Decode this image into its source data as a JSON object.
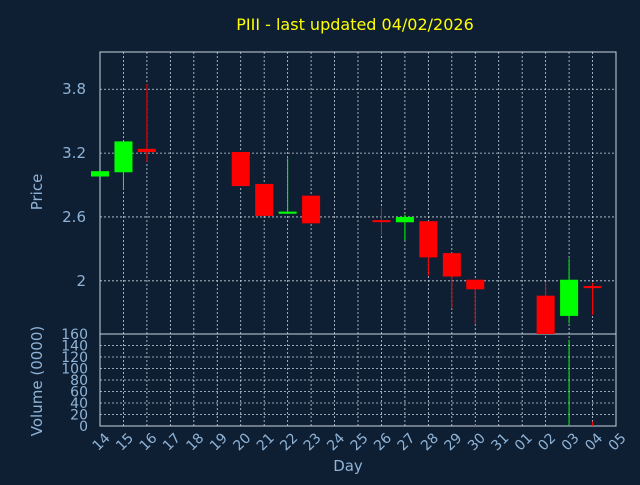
{
  "chart_data": {
    "type": "candlestick",
    "title": "PIII - last updated 04/02/2026",
    "colors": {
      "background": "#0f1f33",
      "title": "#ffff00",
      "axis_text": "#8fb4d8",
      "grid": "#c9d3de",
      "up": "#00ff00",
      "down": "#ff0000"
    },
    "price_panel": {
      "ylabel": "Price",
      "ylim": [
        1.5,
        4.15
      ],
      "yticks": [
        2,
        2.6,
        3.2,
        3.8
      ],
      "ytick_labels": [
        "2",
        "2.6",
        "3.2",
        "3.8"
      ]
    },
    "volume_panel": {
      "ylabel": "Volume (0000)",
      "ylim": [
        0,
        160
      ],
      "yticks": [
        0,
        20,
        40,
        60,
        80,
        100,
        120,
        140,
        160
      ],
      "ytick_labels": [
        "0",
        "20",
        "40",
        "60",
        "80",
        "100",
        "120",
        "140",
        "160"
      ]
    },
    "xlabel": "Day",
    "x_ticks": [
      "14",
      "15",
      "16",
      "17",
      "18",
      "19",
      "20",
      "21",
      "22",
      "23",
      "24",
      "25",
      "26",
      "27",
      "28",
      "29",
      "30",
      "31",
      "01",
      "02",
      "03",
      "04",
      "05"
    ],
    "candles": [
      {
        "day": "14",
        "open": 2.98,
        "close": 3.03,
        "high": 3.03,
        "low": 2.98,
        "volume": 0
      },
      {
        "day": "15",
        "open": 3.02,
        "close": 3.31,
        "high": 3.31,
        "low": 2.86,
        "volume": 0
      },
      {
        "day": "16",
        "open": 3.24,
        "close": 3.21,
        "high": 3.85,
        "low": 3.12,
        "volume": 0
      },
      {
        "day": "20",
        "open": 3.21,
        "close": 2.89,
        "high": 3.21,
        "low": 2.89,
        "volume": 0
      },
      {
        "day": "21",
        "open": 2.91,
        "close": 2.61,
        "high": 2.91,
        "low": 2.61,
        "volume": 0
      },
      {
        "day": "22",
        "open": 2.63,
        "close": 2.65,
        "high": 3.15,
        "low": 2.63,
        "volume": 0
      },
      {
        "day": "23",
        "open": 2.8,
        "close": 2.54,
        "high": 2.8,
        "low": 2.54,
        "volume": 0
      },
      {
        "day": "26",
        "open": 2.57,
        "close": 2.56,
        "high": 2.69,
        "low": 2.43,
        "volume": 0
      },
      {
        "day": "27",
        "open": 2.55,
        "close": 2.6,
        "high": 2.62,
        "low": 2.38,
        "volume": 0
      },
      {
        "day": "28",
        "open": 2.56,
        "close": 2.22,
        "high": 2.56,
        "low": 2.05,
        "volume": 0
      },
      {
        "day": "29",
        "open": 2.26,
        "close": 2.04,
        "high": 2.26,
        "low": 1.74,
        "volume": 0
      },
      {
        "day": "30",
        "open": 2.01,
        "close": 1.92,
        "high": 2.01,
        "low": 1.59,
        "volume": 2
      },
      {
        "day": "02",
        "open": 1.86,
        "close": 1.5,
        "high": 1.99,
        "low": 1.5,
        "volume": 0
      },
      {
        "day": "03",
        "open": 1.67,
        "close": 2.01,
        "high": 2.21,
        "low": 1.6,
        "volume": 150
      },
      {
        "day": "04",
        "open": 1.95,
        "close": 1.94,
        "high": 1.98,
        "low": 1.68,
        "volume": 8
      }
    ]
  }
}
